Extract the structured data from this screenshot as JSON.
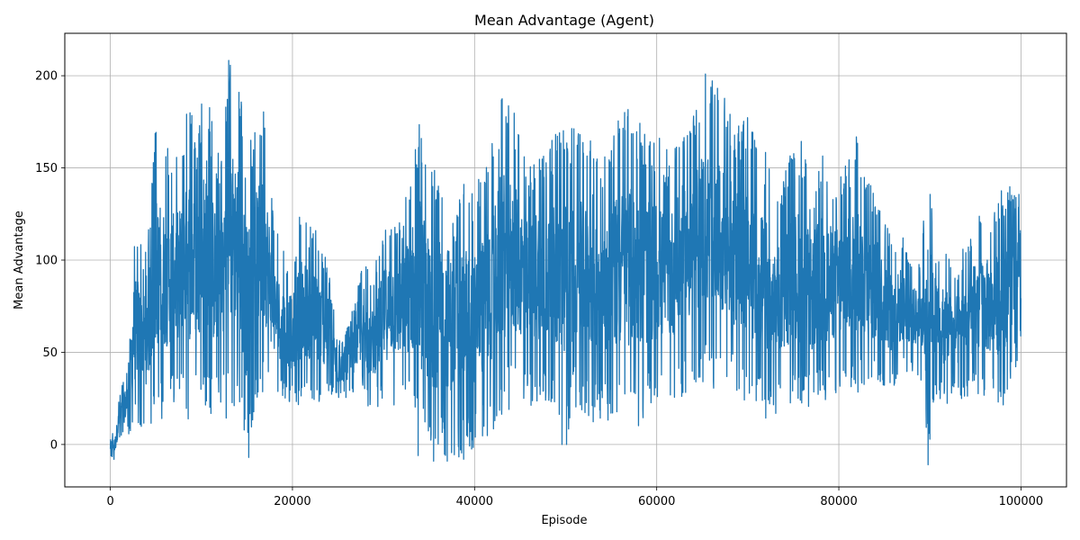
{
  "chart_data": {
    "type": "line",
    "title": "Mean Advantage (Agent)",
    "xlabel": "Episode",
    "ylabel": "Mean Advantage",
    "xlim": [
      -5000,
      105000
    ],
    "ylim": [
      -23,
      223
    ],
    "xticks": [
      0,
      20000,
      40000,
      60000,
      80000,
      100000
    ],
    "xtick_labels": [
      "0",
      "20000",
      "40000",
      "60000",
      "80000",
      "100000"
    ],
    "yticks": [
      0,
      50,
      100,
      150,
      200
    ],
    "ytick_labels": [
      "0",
      "50",
      "100",
      "150",
      "200"
    ],
    "grid": true,
    "series": [
      {
        "color": "#1f77b4",
        "envelope": {
          "x": [
            0,
            500,
            1000,
            2000,
            2500,
            3000,
            4000,
            5000,
            6000,
            7000,
            8000,
            8700,
            9500,
            10500,
            11000,
            12000,
            13000,
            14000,
            15000,
            16000,
            17000,
            18000,
            19000,
            20000,
            21000,
            22000,
            23000,
            24000,
            25000,
            26000,
            27000,
            27800,
            28500,
            30000,
            31000,
            32000,
            33000,
            34000,
            35000,
            36000,
            37000,
            38000,
            39000,
            40000,
            41000,
            42000,
            43000,
            44000,
            45000,
            46000,
            47000,
            48000,
            49000,
            50000,
            51000,
            52000,
            53000,
            54000,
            55000,
            56000,
            57000,
            58000,
            59000,
            60000,
            61000,
            62000,
            63000,
            64000,
            65000,
            66000,
            67000,
            68000,
            69000,
            70000,
            71000,
            72000,
            73000,
            74000,
            75000,
            76000,
            77000,
            78000,
            79000,
            80000,
            81000,
            82000,
            83000,
            84000,
            85000,
            86000,
            87000,
            88000,
            89000,
            89700,
            90500,
            91000,
            92000,
            93000,
            94000,
            95000,
            96000,
            97000,
            98000,
            99000,
            100000
          ],
          "high": [
            6,
            8,
            28,
            45,
            112,
            118,
            105,
            175,
            165,
            160,
            168,
            195,
            160,
            208,
            180,
            155,
            211,
            204,
            160,
            175,
            187,
            120,
            105,
            100,
            130,
            120,
            115,
            95,
            55,
            65,
            78,
            113,
            85,
            120,
            130,
            125,
            150,
            183,
            150,
            150,
            150,
            125,
            148,
            140,
            155,
            165,
            196,
            185,
            173,
            150,
            170,
            160,
            170,
            178,
            175,
            168,
            180,
            150,
            170,
            180,
            184,
            175,
            170,
            170,
            160,
            165,
            182,
            180,
            207,
            200,
            190,
            185,
            175,
            180,
            170,
            160,
            130,
            150,
            162,
            165,
            140,
            162,
            150,
            148,
            155,
            170,
            145,
            140,
            125,
            110,
            118,
            100,
            100,
            150,
            130,
            110,
            105,
            100,
            110,
            124,
            126,
            125,
            140,
            142,
            140
          ],
          "low": [
            -8,
            -9,
            2,
            5,
            5,
            10,
            8,
            12,
            15,
            20,
            25,
            10,
            25,
            20,
            15,
            15,
            14,
            20,
            -7,
            25,
            25,
            25,
            25,
            20,
            20,
            20,
            20,
            25,
            25,
            25,
            28,
            25,
            18,
            20,
            20,
            20,
            18,
            -6,
            -8,
            -9,
            -9,
            -8,
            -8,
            -5,
            0,
            5,
            10,
            20,
            20,
            20,
            20,
            20,
            15,
            0,
            20,
            15,
            10,
            15,
            10,
            12,
            10,
            10,
            15,
            20,
            20,
            25,
            25,
            30,
            30,
            30,
            30,
            28,
            25,
            20,
            15,
            12,
            15,
            20,
            20,
            18,
            20,
            20,
            25,
            28,
            25,
            25,
            28,
            30,
            30,
            30,
            35,
            40,
            35,
            -10,
            20,
            22,
            22,
            22,
            25,
            25,
            25,
            22,
            20,
            35,
            50
          ]
        },
        "spikes": [
          {
            "x": 15200,
            "y": -7
          },
          {
            "x": 33800,
            "y": -6
          },
          {
            "x": 35500,
            "y": -9
          },
          {
            "x": 37000,
            "y": -9
          },
          {
            "x": 38800,
            "y": -8
          },
          {
            "x": 49600,
            "y": 0
          },
          {
            "x": 50100,
            "y": 0
          },
          {
            "x": 89800,
            "y": -11
          }
        ]
      }
    ]
  }
}
